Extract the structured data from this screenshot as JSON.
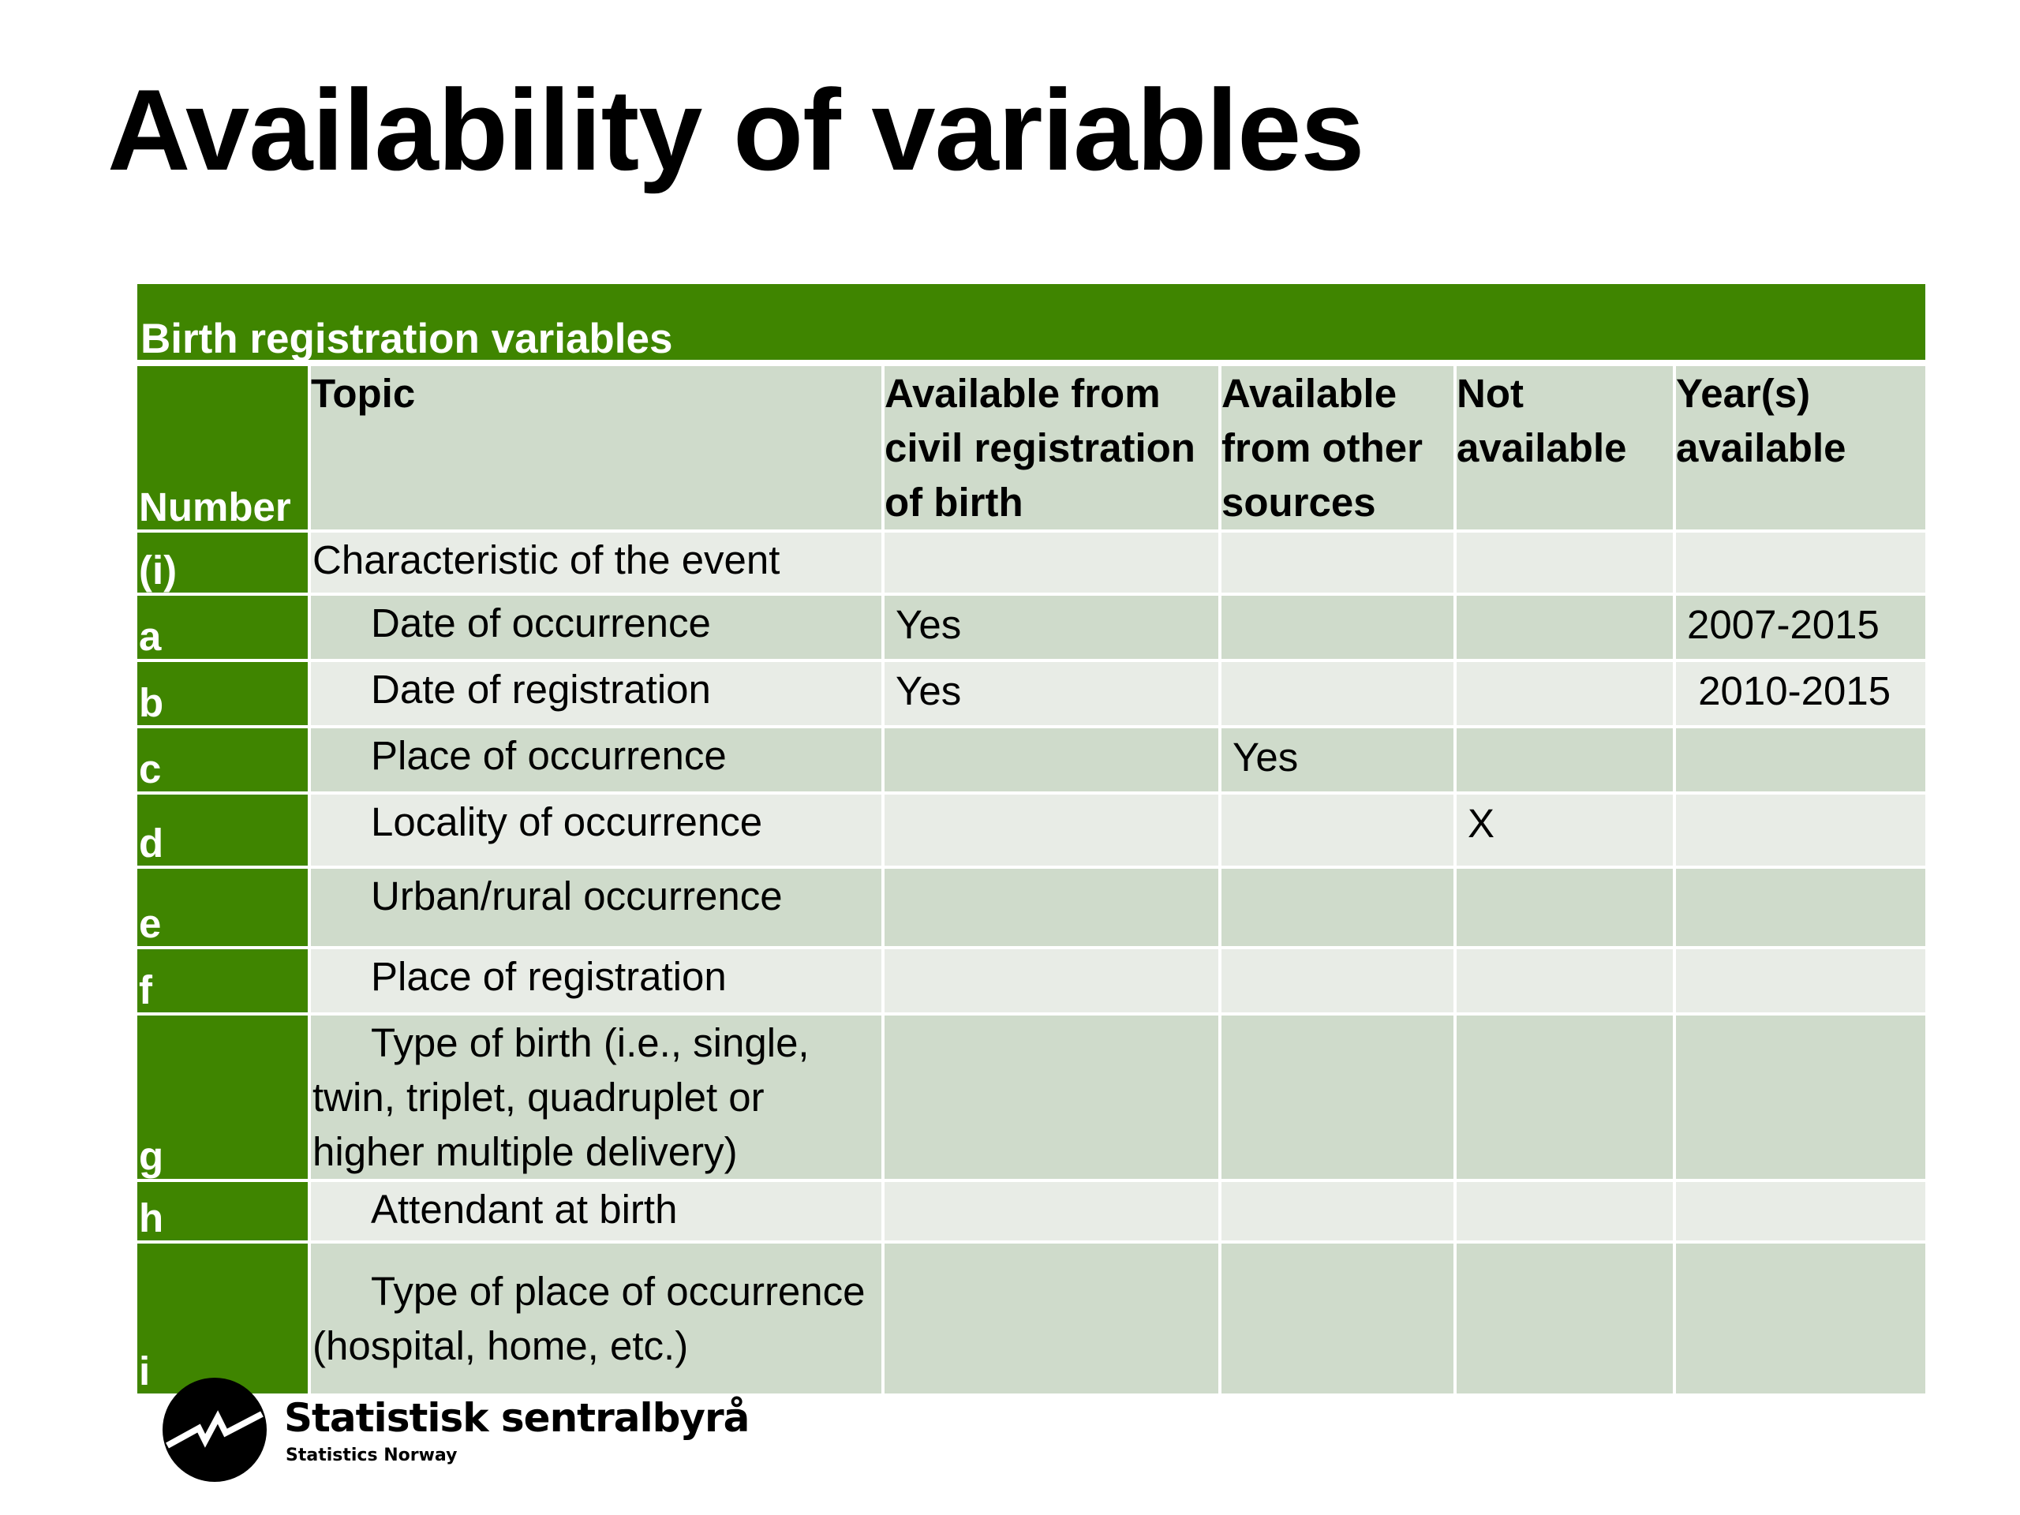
{
  "title": "Availability of variables",
  "table": {
    "caption": "Birth registration variables",
    "columns": [
      "Number",
      "Topic",
      "Available from civil registration of birth",
      "Available from other sources",
      "Not available",
      "Year(s) available"
    ],
    "rows": [
      {
        "number": "(i)",
        "topic": "Characteristic of the event",
        "civil": "",
        "other": "",
        "not_available": "",
        "years": ""
      },
      {
        "number": "a",
        "topic": "Date of occurrence",
        "civil": "Yes",
        "other": "",
        "not_available": "",
        "years": "2007-2015"
      },
      {
        "number": "b",
        "topic": "Date of registration",
        "civil": "Yes",
        "other": "",
        "not_available": "",
        "years": " 2010-2015"
      },
      {
        "number": "c",
        "topic": "Place of occurrence",
        "civil": "",
        "other": "Yes",
        "not_available": "",
        "years": ""
      },
      {
        "number": "d",
        "topic": "Locality of occurrence",
        "civil": "",
        "other": "",
        "not_available": "X",
        "years": ""
      },
      {
        "number": "e",
        "topic": "Urban/rural occurrence",
        "civil": "",
        "other": "",
        "not_available": "",
        "years": ""
      },
      {
        "number": "f",
        "topic": "Place of registration",
        "civil": "",
        "other": "",
        "not_available": "",
        "years": ""
      },
      {
        "number": "g",
        "topic": "Type of birth (i.e., single, twin, triplet, quadruplet or higher multiple delivery)",
        "civil": "",
        "other": "",
        "not_available": "",
        "years": ""
      },
      {
        "number": "h",
        "topic": "Attendant at birth",
        "civil": "",
        "other": "",
        "not_available": "",
        "years": ""
      },
      {
        "number": "i",
        "topic": "Type of place of occurrence (hospital, home, etc.)",
        "civil": "",
        "other": "",
        "not_available": "",
        "years": ""
      }
    ]
  },
  "logo": {
    "name": "Statistisk sentralbyrå",
    "subtitle": "Statistics Norway",
    "icon": "ssb-logo-icon"
  },
  "colors": {
    "header_green": "#3f8500",
    "row_dark": "#cfdbcb",
    "row_light": "#e8ece6"
  }
}
